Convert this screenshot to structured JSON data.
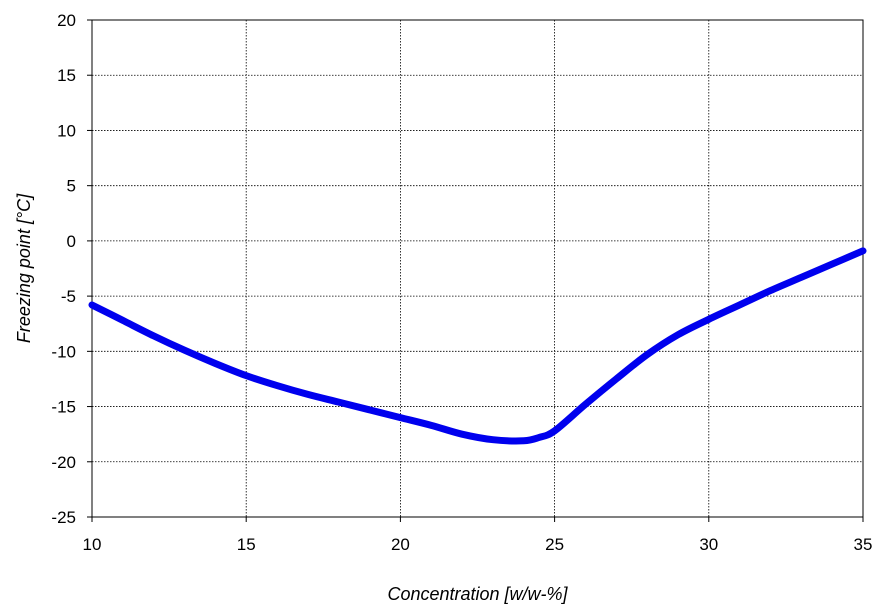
{
  "chart_data": {
    "type": "line",
    "title": "",
    "xlabel": "Concentration [w/w-%]",
    "ylabel": "Freezing point  [°C]",
    "xlim": [
      10,
      35
    ],
    "ylim": [
      -25,
      20
    ],
    "x_ticks": [
      10,
      15,
      20,
      25,
      30,
      35
    ],
    "y_ticks": [
      20,
      15,
      10,
      5,
      0,
      -5,
      -10,
      -15,
      -20,
      -25
    ],
    "grid": true,
    "legend": "none",
    "series": [
      {
        "color": "#0000ee",
        "x": [
          10,
          11,
          12,
          13,
          14,
          15,
          16,
          17,
          18,
          19,
          20,
          21,
          22,
          23,
          24,
          24.5,
          25,
          26,
          27,
          28,
          29,
          30,
          31,
          32,
          33,
          34,
          35
        ],
        "y": [
          -5.8,
          -7.2,
          -8.6,
          -9.9,
          -11.1,
          -12.2,
          -13.1,
          -13.9,
          -14.6,
          -15.3,
          -16.0,
          -16.7,
          -17.5,
          -18.0,
          -18.1,
          -17.8,
          -17.2,
          -14.8,
          -12.5,
          -10.3,
          -8.5,
          -7.1,
          -5.8,
          -4.5,
          -3.3,
          -2.1,
          -0.9
        ]
      }
    ]
  }
}
